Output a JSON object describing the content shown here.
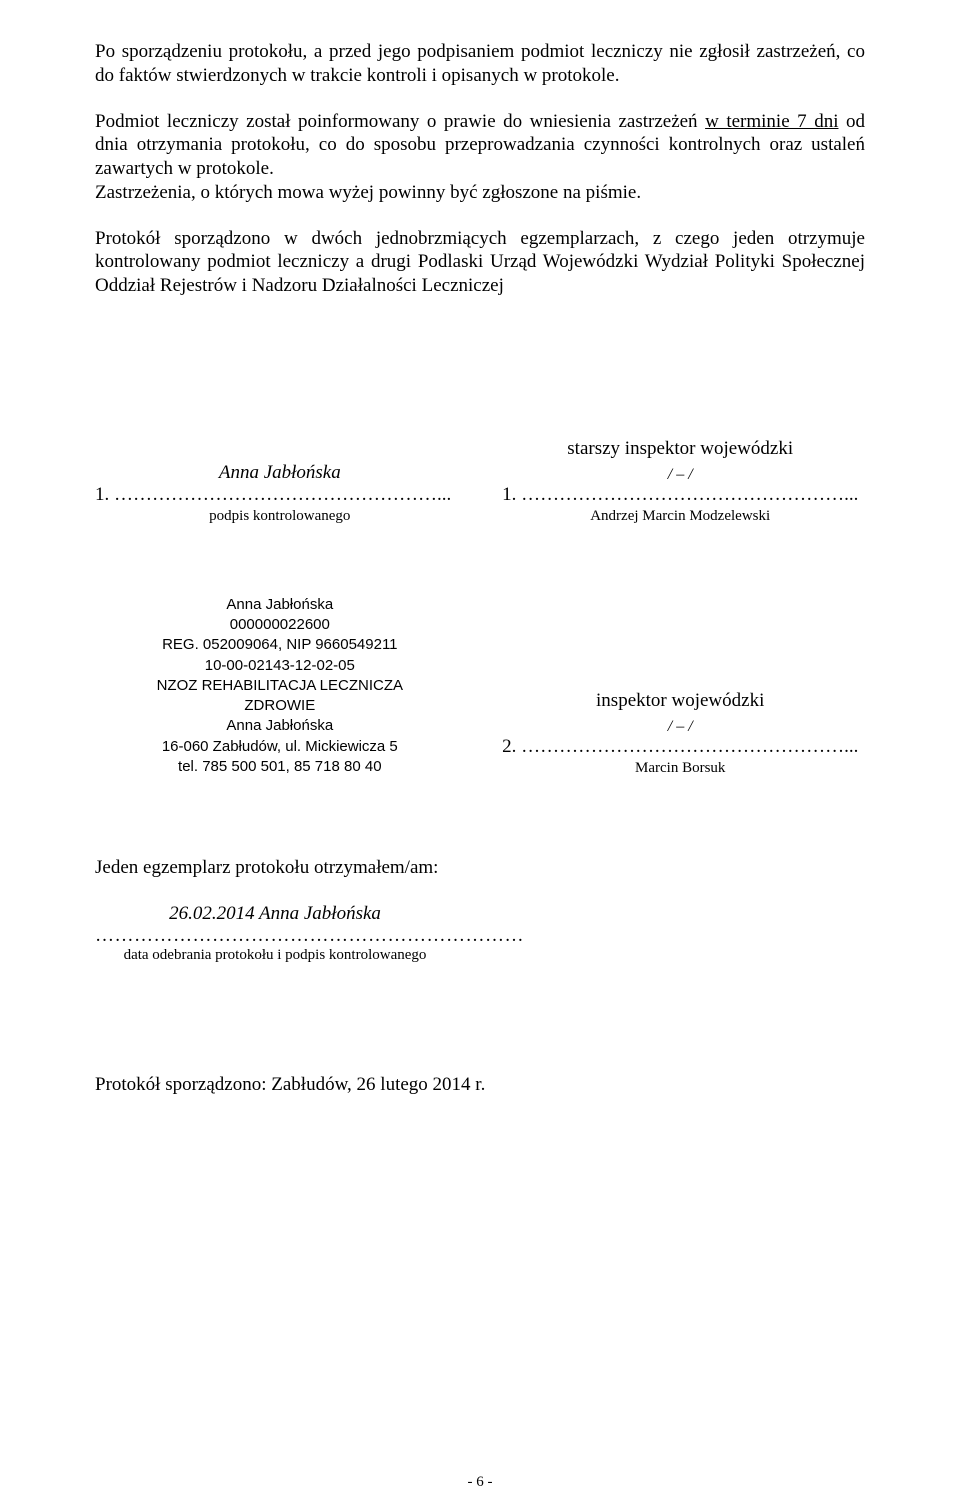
{
  "paragraphs": {
    "p1": "Po sporządzeniu protokołu, a przed jego podpisaniem podmiot leczniczy nie zgłosił zastrzeżeń, co do faktów stwierdzonych w trakcie kontroli i opisanych w protokole.",
    "p2_before": "Podmiot leczniczy został poinformowany o prawie do wniesienia zastrzeżeń ",
    "p2_underlined": "w terminie 7 dni",
    "p2_after": " od dnia otrzymania protokołu, co do sposobu przeprowadzania czynności kontrolnych oraz ustaleń zawartych w protokole.",
    "p2_line2": "Zastrzeżenia, o których mowa wyżej powinny być zgłoszone na piśmie.",
    "p3": "Protokół sporządzono w dwóch jednobrzmiących egzemplarzach, z czego jeden otrzymuje kontrolowany podmiot leczniczy a drugi Podlaski Urząd Wojewódzki Wydział Polityki Społecznej Oddział Rejestrów i Nadzoru Działalności Leczniczej"
  },
  "sig1": {
    "left_name": "Anna Jabłońska",
    "left_num": "1. ",
    "left_dots": "……………………………………………...",
    "left_caption": "podpis kontrolowanego",
    "right_role": "starszy inspektor wojewódzki",
    "right_slash": "/ – /",
    "right_num": "1. ",
    "right_dots": "……………………………………………...",
    "right_name": "Andrzej Marcin Modzelewski"
  },
  "stamp": {
    "l1": "Anna Jabłońska",
    "l2": "000000022600",
    "l3": "REG. 052009064, NIP 9660549211",
    "l4": "10-00-02143-12-02-05",
    "l5": "NZOZ REHABILITACJA LECZNICZA",
    "l6": "ZDROWIE",
    "l7": "Anna Jabłońska",
    "l8": "16-060 Zabłudów, ul. Mickiewicza 5",
    "l9": "tel. 785 500 501, 85 718 80 40"
  },
  "sig2": {
    "right_role": "inspektor wojewódzki",
    "right_slash": "/ – /",
    "right_num": "2. ",
    "right_dots": "……………………………………………...",
    "right_name": "Marcin Borsuk"
  },
  "receipt": {
    "heading": "Jeden egzemplarz protokołu otrzymałem/am:",
    "date_name": "26.02.2014  Anna Jabłońska",
    "dots": "…………………………………………………………",
    "caption": "data odebrania protokołu i podpis kontrolowanego"
  },
  "final": "Protokół sporządzono: Zabłudów, 26 lutego 2014 r.",
  "page_num": "- 6 -"
}
